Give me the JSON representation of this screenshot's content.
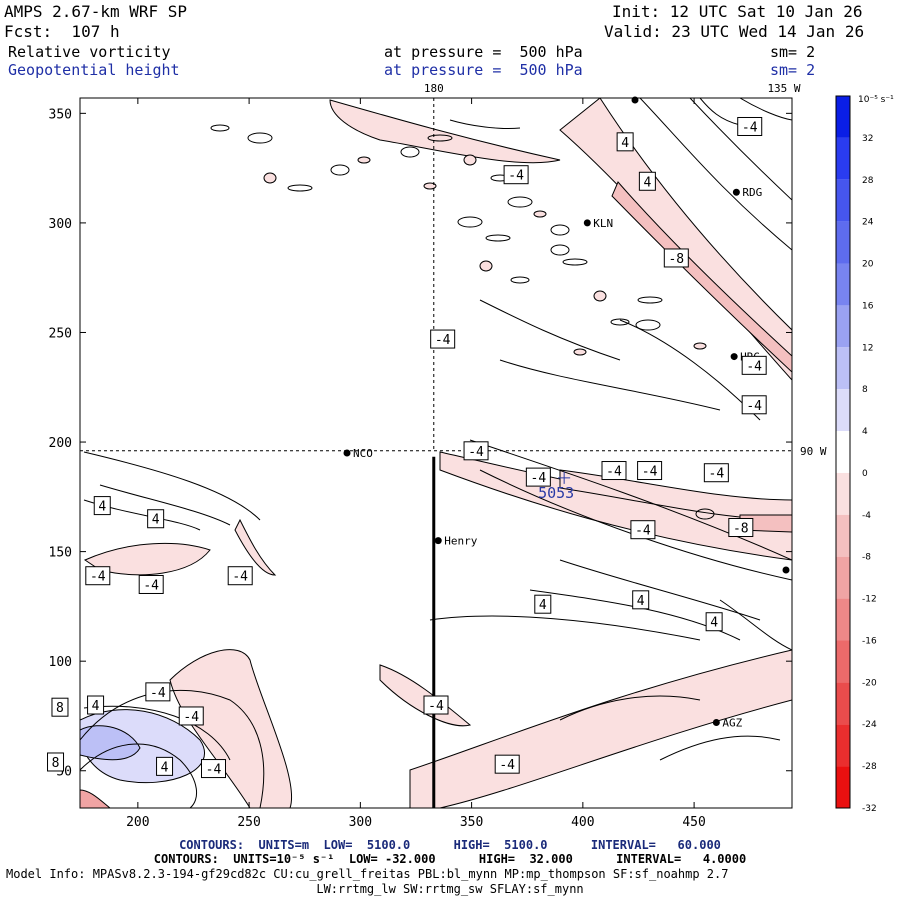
{
  "header": {
    "model": "AMPS 2.67-km WRF SP",
    "forecast": "Fcst:  107 h",
    "init": "Init: 12 UTC Sat 10 Jan 26",
    "valid": "Valid: 23 UTC Wed 14 Jan 26",
    "field1": {
      "name": "Relative vorticity",
      "level": "at pressure =  500 hPa",
      "sm": "sm= 2"
    },
    "field2": {
      "name": "Geopotential height",
      "level": "at pressure =  500 hPa",
      "sm": "sm= 2"
    }
  },
  "map": {
    "x_ticks": [
      "200",
      "250",
      "300",
      "350",
      "400",
      "450"
    ],
    "y_ticks": [
      "350",
      "300",
      "250",
      "200",
      "150",
      "100",
      "50"
    ],
    "xlim": [
      174,
      494
    ],
    "ylim": [
      33,
      357
    ],
    "meridian_label_top": "180",
    "meridian_label_tr": "135 W",
    "parallel_label_right": "90 W",
    "stations": [
      {
        "name": "NCO",
        "x": 294,
        "y": 195
      },
      {
        "name": "Henry",
        "x": 335,
        "y": 155
      },
      {
        "name": "KLN",
        "x": 402,
        "y": 300
      },
      {
        "name": "RDG",
        "x": 469,
        "y": 314
      },
      {
        "name": "HRG",
        "x": 468,
        "y": 239
      },
      {
        "name": "AGZ",
        "x": 460,
        "y": 72
      }
    ],
    "contour_labels": [
      {
        "text": "4",
        "x": 184,
        "y": 171
      },
      {
        "text": "4",
        "x": 208,
        "y": 165
      },
      {
        "text": "-4",
        "x": 182,
        "y": 139
      },
      {
        "text": "-4",
        "x": 206,
        "y": 135
      },
      {
        "text": "-4",
        "x": 246,
        "y": 139
      },
      {
        "text": "-4",
        "x": 209,
        "y": 86
      },
      {
        "text": "-4",
        "x": 224,
        "y": 75
      },
      {
        "text": "4",
        "x": 181,
        "y": 80
      },
      {
        "text": "8",
        "x": 165,
        "y": 79
      },
      {
        "text": "8",
        "x": 163,
        "y": 54
      },
      {
        "text": "4",
        "x": 212,
        "y": 52
      },
      {
        "text": "-4",
        "x": 234,
        "y": 51
      },
      {
        "text": "-4",
        "x": 334,
        "y": 80
      },
      {
        "text": "-4",
        "x": 366,
        "y": 53
      },
      {
        "text": "-4",
        "x": 352,
        "y": 196
      },
      {
        "text": "-4",
        "x": 380,
        "y": 184
      },
      {
        "text": "-4",
        "x": 414,
        "y": 187
      },
      {
        "text": "-4",
        "x": 430,
        "y": 187
      },
      {
        "text": "-4",
        "x": 460,
        "y": 186
      },
      {
        "text": "-4",
        "x": 427,
        "y": 160
      },
      {
        "text": "-8",
        "x": 471,
        "y": 161
      },
      {
        "text": "4",
        "x": 382,
        "y": 126
      },
      {
        "text": "4",
        "x": 426,
        "y": 128
      },
      {
        "text": "4",
        "x": 459,
        "y": 118
      },
      {
        "text": "-4",
        "x": 337,
        "y": 247
      },
      {
        "text": "-4",
        "x": 477,
        "y": 235
      },
      {
        "text": "-4",
        "x": 477,
        "y": 217
      },
      {
        "text": "-8",
        "x": 442,
        "y": 284
      },
      {
        "text": "4",
        "x": 419,
        "y": 337
      },
      {
        "text": "4",
        "x": 429,
        "y": 319
      },
      {
        "text": "-4",
        "x": 370,
        "y": 322
      },
      {
        "text": "-4",
        "x": 475,
        "y": 344
      }
    ],
    "height_label": {
      "text": "5053",
      "x": 388,
      "y": 180
    }
  },
  "colorbar": {
    "unit_label": "10⁻⁵ s⁻¹",
    "labels": [
      "32",
      "28",
      "24",
      "20",
      "16",
      "12",
      "8",
      "4",
      "0",
      "-4",
      "-8",
      "-12",
      "-16",
      "-20",
      "-24",
      "-28",
      "-32"
    ],
    "colors": [
      "#0a1ee6",
      "#2a3cf0",
      "#4656ee",
      "#5e6cee",
      "#7884f0",
      "#9aa2f2",
      "#bcc0f6",
      "#dcdcfa",
      "#ffffff",
      "#fae0e0",
      "#f4c0c0",
      "#f0a4a4",
      "#ee8888",
      "#ec6a6a",
      "#ea4c4c",
      "#ea2e2e",
      "#ea1010"
    ]
  },
  "footer": {
    "contours1": "CONTOURS:  UNITS=m  LOW=  5100.0      HIGH=  5100.0      INTERVAL=   60.000",
    "contours2": "CONTOURS:  UNITS=10⁻⁵ s⁻¹  LOW= -32.000      HIGH=  32.000      INTERVAL=   4.0000",
    "model_info": "Model Info: MPASv8.2.3-194-gf29cd82c CU:cu_grell_freitas PBL:bl_mynn MP:mp_thompson SF:sf_noahmp 2.7",
    "model_info2": "LW:rrtmg_lw SW:rrtmg_sw SFLAY:sf_mynn"
  }
}
